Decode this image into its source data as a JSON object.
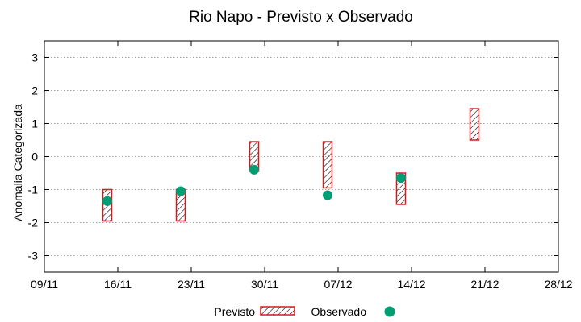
{
  "chart_data": {
    "type": "range-bar-scatter",
    "title": "Rio Napo - Previsto x Observado",
    "xlabel": "",
    "ylabel": "Anomalia Categorizada",
    "x_ticks": [
      "09/11",
      "16/11",
      "23/11",
      "30/11",
      "07/12",
      "14/12",
      "21/12",
      "28/12"
    ],
    "xlim_days": [
      0,
      49
    ],
    "ylim": [
      -3.5,
      3.5
    ],
    "y_ticks": [
      -3,
      -2,
      -1,
      0,
      1,
      2,
      3
    ],
    "grid": true,
    "legend_position": "bottom",
    "series": [
      {
        "name": "Previsto",
        "style": "hatched-range-box",
        "color": "#d7191c",
        "points": [
          {
            "day": 6,
            "low": -1.95,
            "high": -1.0
          },
          {
            "day": 13,
            "low": -1.95,
            "high": -1.0
          },
          {
            "day": 20,
            "low": -0.45,
            "high": 0.45
          },
          {
            "day": 27,
            "low": -0.95,
            "high": 0.45
          },
          {
            "day": 34,
            "low": -1.45,
            "high": -0.5
          },
          {
            "day": 41,
            "low": 0.5,
            "high": 1.45
          }
        ]
      },
      {
        "name": "Observado",
        "style": "circle",
        "color": "#009e73",
        "points": [
          {
            "day": 6,
            "value": -1.35
          },
          {
            "day": 13,
            "value": -1.05
          },
          {
            "day": 20,
            "value": -0.4
          },
          {
            "day": 27,
            "value": -1.17
          },
          {
            "day": 34,
            "value": -0.65
          }
        ]
      }
    ]
  }
}
